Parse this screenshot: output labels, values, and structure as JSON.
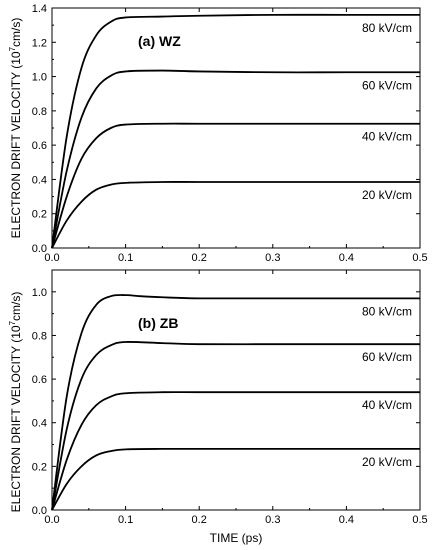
{
  "chart_data": [
    {
      "type": "line",
      "panel_label": "(a) WZ",
      "xlabel": "",
      "ylabel_main": "ELECTRON DRIFT VELOCITY (10",
      "ylabel_sup": "7",
      "ylabel_tail": "cm/s)",
      "xlim": [
        0,
        0.5
      ],
      "ylim": [
        0,
        1.4
      ],
      "x_ticks": [
        "0.0",
        "0.1",
        "0.2",
        "0.3",
        "0.4",
        "0.5"
      ],
      "y_ticks": [
        "0.0",
        "0.2",
        "0.4",
        "0.6",
        "0.8",
        "1.0",
        "1.2",
        "1.4"
      ],
      "series": [
        {
          "name": "80 kV/cm",
          "x": [
            0,
            0.02,
            0.04,
            0.06,
            0.08,
            0.1,
            0.15,
            0.2,
            0.3,
            0.4,
            0.5
          ],
          "values": [
            0,
            0.65,
            1.05,
            1.24,
            1.32,
            1.345,
            1.35,
            1.355,
            1.36,
            1.36,
            1.36
          ]
        },
        {
          "name": "60 kV/cm",
          "x": [
            0,
            0.02,
            0.04,
            0.06,
            0.08,
            0.1,
            0.15,
            0.2,
            0.3,
            0.4,
            0.5
          ],
          "values": [
            0,
            0.45,
            0.76,
            0.93,
            1.005,
            1.03,
            1.035,
            1.03,
            1.025,
            1.025,
            1.025
          ]
        },
        {
          "name": "40 kV/cm",
          "x": [
            0,
            0.02,
            0.04,
            0.06,
            0.08,
            0.1,
            0.15,
            0.2,
            0.3,
            0.4,
            0.5
          ],
          "values": [
            0,
            0.3,
            0.52,
            0.64,
            0.7,
            0.72,
            0.725,
            0.725,
            0.725,
            0.725,
            0.725
          ]
        },
        {
          "name": "20 kV/cm",
          "x": [
            0,
            0.02,
            0.04,
            0.06,
            0.08,
            0.1,
            0.15,
            0.2,
            0.3,
            0.4,
            0.5
          ],
          "values": [
            0,
            0.16,
            0.27,
            0.34,
            0.37,
            0.38,
            0.385,
            0.385,
            0.385,
            0.385,
            0.385
          ]
        }
      ]
    },
    {
      "type": "line",
      "panel_label": "(b) ZB",
      "xlabel": "TIME (ps)",
      "ylabel_main": "ELECTRON DRIFT VELOCITY (10",
      "ylabel_sup": "7",
      "ylabel_tail": "cm/s)",
      "xlim": [
        0,
        0.5
      ],
      "ylim": [
        0,
        1.1
      ],
      "x_ticks": [
        "0.0",
        "0.1",
        "0.2",
        "0.3",
        "0.4",
        "0.5"
      ],
      "y_ticks": [
        "0.0",
        "0.2",
        "0.4",
        "0.6",
        "0.8",
        "1.0"
      ],
      "series": [
        {
          "name": "80 kV/cm",
          "x": [
            0,
            0.02,
            0.04,
            0.06,
            0.08,
            0.1,
            0.12,
            0.15,
            0.2,
            0.3,
            0.4,
            0.5
          ],
          "values": [
            0,
            0.52,
            0.81,
            0.94,
            0.98,
            0.985,
            0.98,
            0.975,
            0.97,
            0.97,
            0.97,
            0.97
          ]
        },
        {
          "name": "60 kV/cm",
          "x": [
            0,
            0.02,
            0.04,
            0.06,
            0.08,
            0.1,
            0.15,
            0.2,
            0.3,
            0.4,
            0.5
          ],
          "values": [
            0,
            0.37,
            0.6,
            0.71,
            0.755,
            0.77,
            0.765,
            0.76,
            0.76,
            0.76,
            0.76
          ]
        },
        {
          "name": "40 kV/cm",
          "x": [
            0,
            0.02,
            0.04,
            0.06,
            0.08,
            0.1,
            0.15,
            0.2,
            0.3,
            0.4,
            0.5
          ],
          "values": [
            0,
            0.23,
            0.39,
            0.48,
            0.52,
            0.535,
            0.54,
            0.54,
            0.54,
            0.54,
            0.54
          ]
        },
        {
          "name": "20 kV/cm",
          "x": [
            0,
            0.02,
            0.04,
            0.06,
            0.08,
            0.1,
            0.15,
            0.2,
            0.3,
            0.4,
            0.5
          ],
          "values": [
            0,
            0.12,
            0.2,
            0.25,
            0.27,
            0.278,
            0.28,
            0.28,
            0.28,
            0.28,
            0.28
          ]
        }
      ]
    }
  ]
}
